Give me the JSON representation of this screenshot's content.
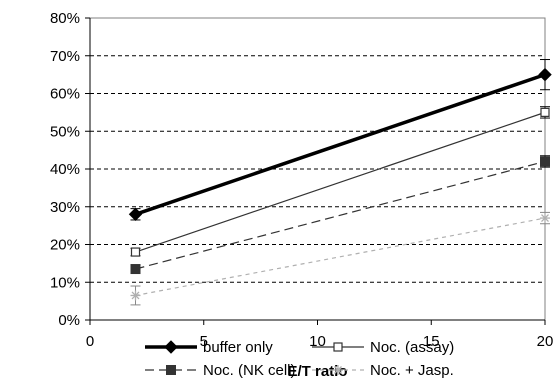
{
  "chart_data": {
    "type": "line",
    "title": "",
    "xlabel": "E/T ratio",
    "ylabel": "",
    "xlim": [
      0,
      20
    ],
    "ylim": [
      0,
      80
    ],
    "x_ticks": [
      "0",
      "5",
      "10",
      "15",
      "20"
    ],
    "y_ticks": [
      "0%",
      "10%",
      "20%",
      "30%",
      "40%",
      "50%",
      "60%",
      "70%",
      "80%"
    ],
    "y_tick_values": [
      0,
      10,
      20,
      30,
      40,
      50,
      60,
      70,
      80
    ],
    "x_tick_values": [
      0,
      5,
      10,
      15,
      20
    ],
    "grid": "horizontal dashed",
    "legend_position": "bottom",
    "series": [
      {
        "name": "buffer only",
        "x": [
          2,
          20
        ],
        "values": [
          28,
          65
        ],
        "error": [
          1.5,
          4
        ],
        "color": "#000000",
        "dash": "",
        "width": 3.5,
        "marker": "diamond"
      },
      {
        "name": "Noc. (assay)",
        "x": [
          2,
          20
        ],
        "values": [
          18,
          55
        ],
        "error": [
          1,
          1.5
        ],
        "color": "#333333",
        "dash": "",
        "width": 1.2,
        "marker": "open-square"
      },
      {
        "name": "Noc. (NK cell)",
        "x": [
          2,
          20
        ],
        "values": [
          13.5,
          42
        ],
        "error": [
          1,
          1.5
        ],
        "color": "#333333",
        "dash": "9,5",
        "width": 1.2,
        "marker": "filled-square"
      },
      {
        "name": "Noc. + Jasp.",
        "x": [
          2,
          20
        ],
        "values": [
          6.5,
          27
        ],
        "error": [
          2.5,
          1.5
        ],
        "color": "#b0b0b0",
        "dash": "4,4",
        "width": 1.2,
        "marker": "star"
      }
    ]
  }
}
